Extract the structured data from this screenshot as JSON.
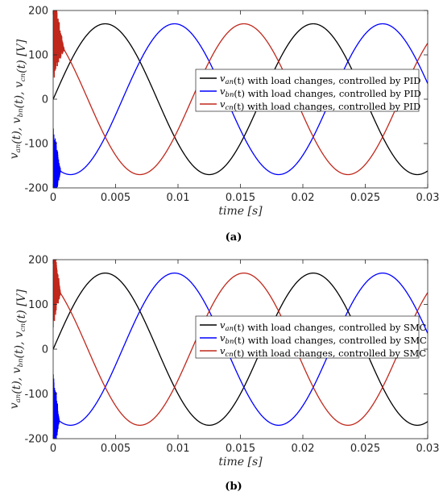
{
  "panels": [
    {
      "caption": "(a)",
      "chart_data": {
        "type": "line",
        "xlabel": "time [s]",
        "ylabel": "v_an(t), v_bn(t), v_cn(t) [V]",
        "xlim": [
          0,
          0.03
        ],
        "ylim": [
          -200,
          200
        ],
        "xticks": [
          0,
          0.005,
          0.01,
          0.015,
          0.02,
          0.025,
          0.03
        ],
        "xtick_labels": [
          "0",
          "0.005",
          "0.01",
          "0.015",
          "0.02",
          "0.025",
          "0.03"
        ],
        "yticks": [
          -200,
          -100,
          0,
          100,
          200
        ],
        "ytick_labels": [
          "-200",
          "-100",
          "0",
          "100",
          "200"
        ],
        "grid": false,
        "legend_position": "upper-right",
        "series": [
          {
            "name": "v_an(t) with load changes, controlled by PID",
            "color": "#000000",
            "amplitude": 170,
            "frequency_hz": 60,
            "phase_deg": 0,
            "transient": "none"
          },
          {
            "name": "v_bn(t) with load changes, controlled by PID",
            "color": "#0000ff",
            "amplitude": 170,
            "frequency_hz": 60,
            "phase_deg": -120,
            "transient": "oscillation near t=0 to t=0.0006"
          },
          {
            "name": "v_cn(t) with load changes, controlled by PID",
            "color": "#c0281c",
            "amplitude": 170,
            "frequency_hz": 60,
            "phase_deg": 120,
            "transient": "oscillation near t=0 to t=0.0009"
          }
        ]
      }
    },
    {
      "caption": "(b)",
      "chart_data": {
        "type": "line",
        "xlabel": "time [s]",
        "ylabel": "v_an(t), v_bn(t), v_cn(t) [V]",
        "xlim": [
          0,
          0.03
        ],
        "ylim": [
          -200,
          200
        ],
        "xticks": [
          0,
          0.005,
          0.01,
          0.015,
          0.02,
          0.025,
          0.03
        ],
        "xtick_labels": [
          "0",
          "0.005",
          "0.01",
          "0.015",
          "0.02",
          "0.025",
          "0.03"
        ],
        "yticks": [
          -200,
          -100,
          0,
          100,
          200
        ],
        "ytick_labels": [
          "-200",
          "-100",
          "0",
          "100",
          "200"
        ],
        "grid": false,
        "legend_position": "center-right",
        "series": [
          {
            "name": "v_an(t) with load changes, controlled by SMC",
            "color": "#000000",
            "amplitude": 170,
            "frequency_hz": 60,
            "phase_deg": 0,
            "transient": "none"
          },
          {
            "name": "v_bn(t) with load changes, controlled by SMC",
            "color": "#0000ff",
            "amplitude": 170,
            "frequency_hz": 60,
            "phase_deg": -120,
            "transient": "oscillation near t=0 to t=0.0005"
          },
          {
            "name": "v_cn(t) with load changes, controlled by SMC",
            "color": "#c0281c",
            "amplitude": 170,
            "frequency_hz": 60,
            "phase_deg": 120,
            "transient": "oscillation near t=0 to t=0.0006"
          }
        ]
      }
    }
  ]
}
